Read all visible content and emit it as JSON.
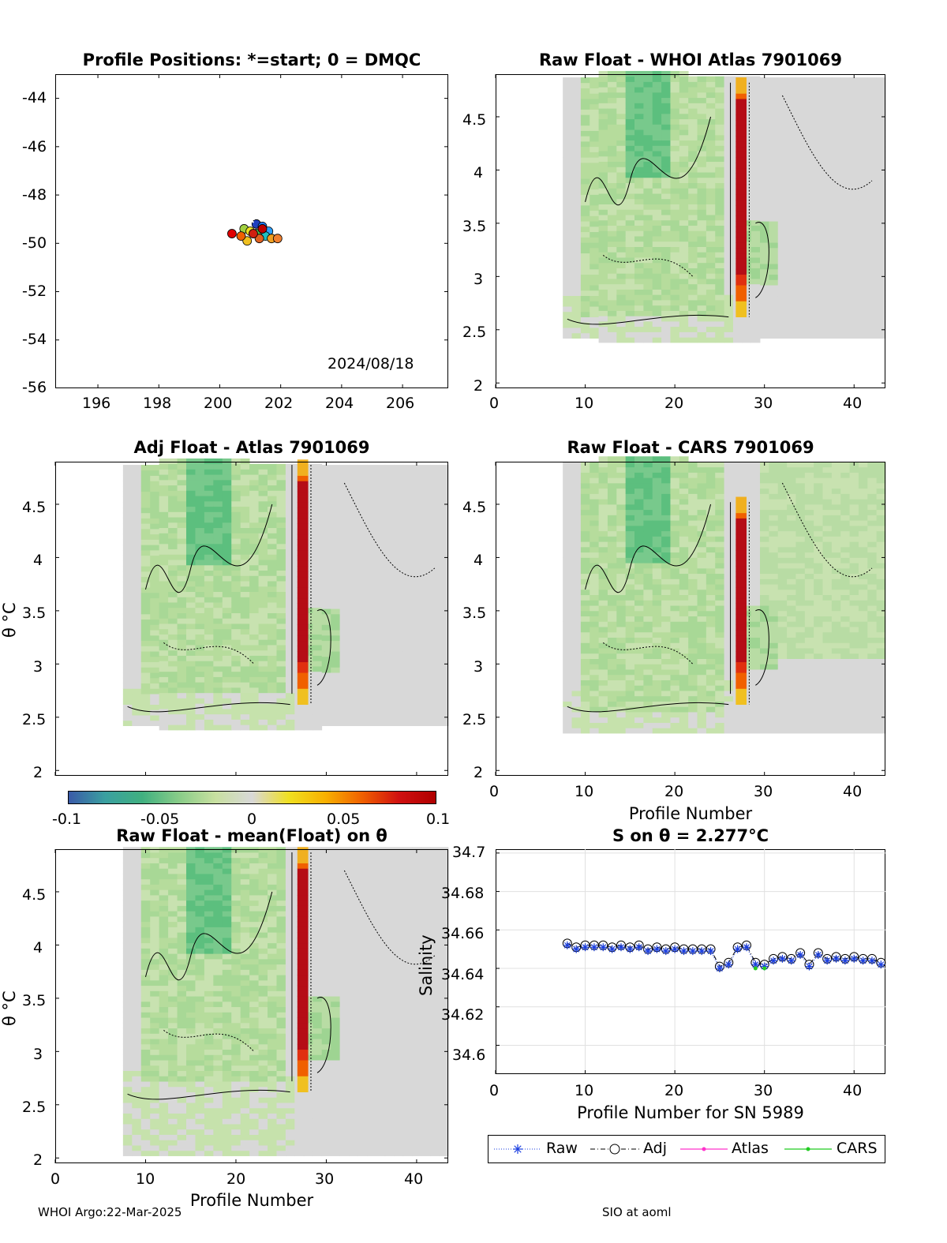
{
  "chart_data": [
    {
      "type": "scatter",
      "title": "Profile Positions: *=start; 0 = DMQC",
      "xlim": [
        194.6,
        207.5
      ],
      "ylim": [
        -56,
        -43
      ],
      "x_ticks": [
        "196",
        "198",
        "200",
        "202",
        "204",
        "206"
      ],
      "y_ticks": [
        "-44",
        "-46",
        "-48",
        "-50",
        "-52",
        "-54",
        "-56"
      ],
      "annotation": "2024/08/18",
      "start_marker": {
        "x": 201.0,
        "y": -49.0
      },
      "points": [
        {
          "x": 201.2,
          "y": -49.2,
          "color": "#1f3fbf"
        },
        {
          "x": 201.4,
          "y": -49.3,
          "color": "#1f7fff"
        },
        {
          "x": 201.6,
          "y": -49.5,
          "color": "#2aa0ff"
        },
        {
          "x": 201.5,
          "y": -49.7,
          "color": "#1fbfbf"
        },
        {
          "x": 201.2,
          "y": -49.6,
          "color": "#50c850"
        },
        {
          "x": 200.8,
          "y": -49.4,
          "color": "#a0d040"
        },
        {
          "x": 201.0,
          "y": -49.5,
          "color": "#f0e020"
        },
        {
          "x": 201.7,
          "y": -49.8,
          "color": "#f0a020"
        },
        {
          "x": 200.9,
          "y": -49.9,
          "color": "#f0c020"
        },
        {
          "x": 201.3,
          "y": -49.8,
          "color": "#e06020"
        },
        {
          "x": 200.7,
          "y": -49.7,
          "color": "#f06000"
        },
        {
          "x": 201.1,
          "y": -49.6,
          "color": "#d02010"
        },
        {
          "x": 200.4,
          "y": -49.6,
          "color": "#e00000"
        },
        {
          "x": 201.4,
          "y": -49.4,
          "color": "#c00000"
        },
        {
          "x": 201.9,
          "y": -49.8,
          "color": "#f08030"
        }
      ]
    },
    {
      "type": "heatmap",
      "title": "Raw Float - WHOI Atlas  7901069",
      "xlim": [
        0,
        43.5
      ],
      "ylim": [
        1.95,
        4.9
      ],
      "x_ticks": [
        "0",
        "10",
        "20",
        "30",
        "40"
      ],
      "y_ticks": [
        "4.5",
        "4",
        "3.5",
        "3",
        "2.5",
        "2"
      ],
      "xlabel": "",
      "ylabel": ""
    },
    {
      "type": "heatmap",
      "title": "Adj Float - Atlas  7901069",
      "xlim": [
        0,
        43.5
      ],
      "ylim": [
        1.95,
        4.9
      ],
      "x_ticks": [],
      "y_ticks": [
        "4.5",
        "4",
        "3.5",
        "3",
        "2.5",
        "2"
      ],
      "ylabel": "θ °C"
    },
    {
      "type": "heatmap",
      "title": "Raw Float - CARS  7901069",
      "xlim": [
        0,
        43.5
      ],
      "ylim": [
        1.95,
        4.9
      ],
      "x_ticks": [
        "0",
        "10",
        "20",
        "30",
        "40"
      ],
      "y_ticks": [
        "4.5",
        "4",
        "3.5",
        "3",
        "2.5",
        "2"
      ],
      "xlabel": "Profile Number"
    },
    {
      "type": "heatmap",
      "title": "Raw Float - mean(Float) on θ",
      "xlim": [
        0,
        43.5
      ],
      "ylim": [
        1.95,
        4.9
      ],
      "x_ticks": [
        "0",
        "10",
        "20",
        "30",
        "40"
      ],
      "y_ticks": [
        "4.5",
        "4",
        "3.5",
        "3",
        "2.5",
        "2"
      ],
      "xlabel": "Profile Number",
      "ylabel": "θ °C"
    },
    {
      "type": "line",
      "title": "S on θ = 2.277°C",
      "xlim": [
        0,
        43.5
      ],
      "ylim": [
        34.585,
        34.702
      ],
      "x_ticks": [
        "0",
        "10",
        "20",
        "30",
        "40"
      ],
      "y_ticks": [
        "34.7",
        "34.68",
        "34.66",
        "34.64",
        "34.62",
        "34.6"
      ],
      "xlabel": "Profile Number for SN 5989",
      "ylabel": "Salinity",
      "grid": true,
      "legend": [
        "Raw",
        "Adj",
        "Atlas",
        "CARS"
      ],
      "legend_placement": "below",
      "x": [
        8,
        9,
        10,
        11,
        12,
        13,
        14,
        15,
        16,
        17,
        18,
        19,
        20,
        21,
        22,
        23,
        24,
        25,
        26,
        27,
        28,
        29,
        30,
        31,
        32,
        33,
        34,
        35,
        36,
        37,
        38,
        39,
        40,
        41,
        42,
        43
      ],
      "series": [
        {
          "name": "Raw",
          "color": "#1a3ee0",
          "values": [
            34.652,
            34.65,
            34.651,
            34.651,
            34.651,
            34.65,
            34.651,
            34.65,
            34.651,
            34.649,
            34.65,
            34.649,
            34.65,
            34.649,
            34.649,
            34.649,
            34.649,
            34.64,
            34.642,
            34.65,
            34.651,
            34.642,
            34.641,
            34.644,
            34.645,
            34.644,
            34.647,
            34.641,
            34.647,
            34.644,
            34.645,
            34.644,
            34.645,
            34.644,
            34.644,
            34.642
          ]
        },
        {
          "name": "Adj",
          "color": "#000000",
          "values": [
            34.653,
            34.651,
            34.652,
            34.652,
            34.652,
            34.651,
            34.652,
            34.651,
            34.652,
            34.65,
            34.651,
            34.65,
            34.651,
            34.65,
            34.65,
            34.65,
            34.65,
            34.641,
            34.643,
            34.651,
            34.652,
            34.643,
            34.642,
            34.645,
            34.646,
            34.645,
            34.648,
            34.642,
            34.648,
            34.645,
            34.646,
            34.645,
            34.646,
            34.645,
            34.645,
            34.643
          ]
        },
        {
          "name": "CARS",
          "color": "#22cc22",
          "x": [
            29,
            30
          ],
          "values": [
            34.64,
            34.64
          ]
        }
      ]
    }
  ],
  "colorbar": {
    "min_label": "-0.1",
    "labels": [
      "-0.1",
      "-0.05",
      "0",
      "0.05",
      "0.1"
    ],
    "colors": [
      "#3a5aa8",
      "#3aa0a0",
      "#40b080",
      "#88cc88",
      "#c8e0a0",
      "#d8d8d8",
      "#f0e020",
      "#f8b000",
      "#f06000",
      "#d01010",
      "#b00000"
    ]
  },
  "footer": {
    "left": "WHOI Argo:22-Mar-2025",
    "right": "SIO at aoml"
  }
}
